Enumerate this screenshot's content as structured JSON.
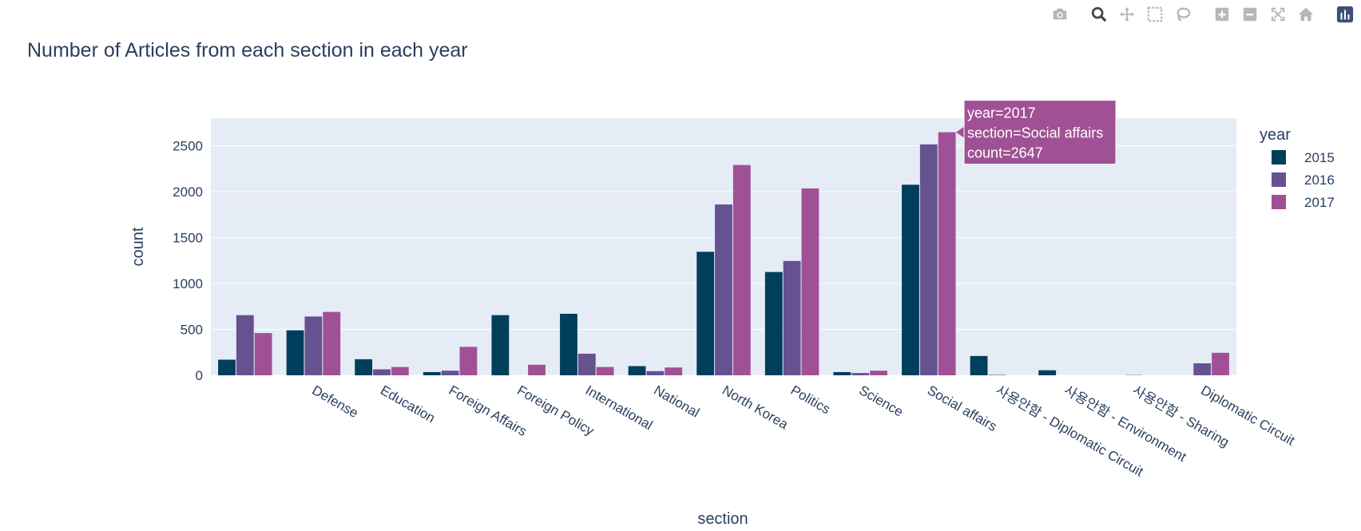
{
  "modebar": {
    "buttons": [
      {
        "icon": "camera-icon",
        "name": "download-plot-button",
        "active": false
      },
      {
        "icon": "zoom-icon",
        "name": "zoom-button",
        "active": true
      },
      {
        "icon": "pan-icon",
        "name": "pan-button",
        "active": false
      },
      {
        "icon": "box-select-icon",
        "name": "box-select-button",
        "active": false
      },
      {
        "icon": "lasso-select-icon",
        "name": "lasso-select-button",
        "active": false
      },
      {
        "icon": "zoom-in-icon",
        "name": "zoom-in-button",
        "active": false
      },
      {
        "icon": "zoom-out-icon",
        "name": "zoom-out-button",
        "active": false
      },
      {
        "icon": "autoscale-icon",
        "name": "autoscale-button",
        "active": false
      },
      {
        "icon": "home-icon",
        "name": "reset-axes-button",
        "active": false
      },
      {
        "icon": "plotly-logo-icon",
        "name": "plotly-logo",
        "active": false
      }
    ]
  },
  "chart_data": {
    "type": "bar",
    "barmode": "group",
    "title": "Number of Articles from each section in each year",
    "xlabel": "section",
    "ylabel": "count",
    "ylim": [
      0,
      2800
    ],
    "yticks": [
      0,
      500,
      1000,
      1500,
      2000,
      2500
    ],
    "grid": true,
    "legend": {
      "title": "year",
      "position": "right"
    },
    "categories": [
      "",
      "Defense",
      "Education",
      "Foreign  Affairs",
      "Foreign Policy",
      "International",
      "National",
      "North Korea",
      "Politics",
      "Science",
      "Social affairs",
      "사용안함 - Diplomatic Circuit",
      "사용안함 - Environment",
      "사용안함 - Sharing",
      "Diplomatic Circuit"
    ],
    "series": [
      {
        "name": "2015",
        "color": "#003f5c",
        "values": [
          170,
          490,
          175,
          35,
          655,
          670,
          100,
          1345,
          1125,
          35,
          2075,
          210,
          55,
          0,
          0
        ]
      },
      {
        "name": "2016",
        "color": "#665191",
        "values": [
          655,
          640,
          65,
          50,
          0,
          235,
          45,
          1860,
          1245,
          25,
          2515,
          5,
          0,
          3,
          130
        ]
      },
      {
        "name": "2017",
        "color": "#a05195",
        "values": [
          460,
          690,
          90,
          310,
          115,
          90,
          85,
          2290,
          2035,
          50,
          2647,
          0,
          0,
          0,
          245
        ]
      }
    ],
    "hover": {
      "lines": [
        "year=2017",
        "section=Social affairs",
        "count=2647"
      ],
      "series_index": 2,
      "category_index": 10,
      "color": "#a05195"
    }
  }
}
